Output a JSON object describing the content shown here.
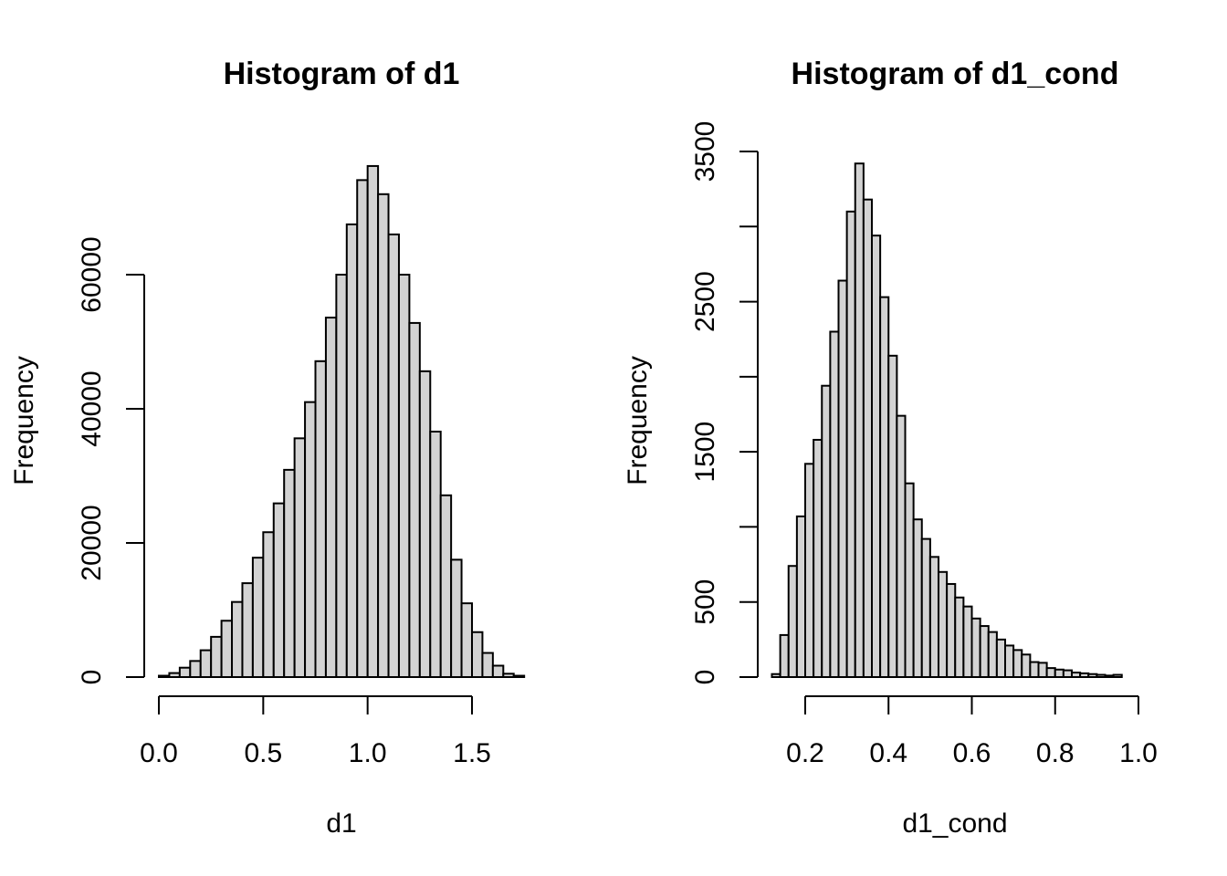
{
  "chart_data": [
    {
      "type": "bar",
      "title": "Histogram of d1",
      "xlabel": "d1",
      "ylabel": "Frequency",
      "xlim": [
        0.0,
        1.75
      ],
      "ylim": [
        0,
        60000
      ],
      "x_ticks": [
        0.0,
        0.5,
        1.0,
        1.5
      ],
      "x_tick_labels": [
        "0.0",
        "0.5",
        "1.0",
        "1.5"
      ],
      "y_ticks": [
        0,
        20000,
        40000,
        60000
      ],
      "y_tick_labels": [
        "0",
        "20000",
        "40000",
        "60000"
      ],
      "bin_width": 0.05,
      "bin_start": 0.0,
      "values": [
        200,
        600,
        1400,
        2400,
        4000,
        6000,
        8400,
        11200,
        14000,
        17800,
        21600,
        25900,
        30900,
        35600,
        41000,
        47100,
        53600,
        60000,
        67500,
        74100,
        76200,
        72000,
        66000,
        60000,
        52800,
        45600,
        36600,
        27100,
        17500,
        11000,
        6700,
        3600,
        1700,
        500,
        200
      ],
      "bar_fill": "#d3d3d3",
      "bar_stroke": "#000000",
      "grid": false
    },
    {
      "type": "bar",
      "title": "Histogram of d1_cond",
      "xlabel": "d1_cond",
      "ylabel": "Frequency",
      "xlim": [
        0.12,
        1.0
      ],
      "ylim": [
        0,
        3500
      ],
      "x_ticks": [
        0.2,
        0.4,
        0.6,
        0.8,
        1.0
      ],
      "x_tick_labels": [
        "0.2",
        "0.4",
        "0.6",
        "0.8",
        "1.0"
      ],
      "y_ticks": [
        0,
        500,
        1500,
        2500,
        3500
      ],
      "y_tick_labels": [
        "0",
        "500",
        "1500",
        "2500",
        "3500"
      ],
      "y_unlabeled_ticks": [
        1000,
        2000,
        3000
      ],
      "bin_width": 0.02,
      "bin_start": 0.12,
      "values": [
        20,
        280,
        740,
        1070,
        1420,
        1580,
        1940,
        2300,
        2640,
        3100,
        3420,
        3180,
        2940,
        2530,
        2140,
        1740,
        1290,
        1050,
        920,
        800,
        700,
        620,
        530,
        470,
        390,
        340,
        300,
        250,
        210,
        180,
        150,
        100,
        95,
        60,
        50,
        45,
        30,
        25,
        20,
        15,
        10,
        15
      ],
      "bar_fill": "#d3d3d3",
      "bar_stroke": "#000000",
      "grid": false
    }
  ]
}
